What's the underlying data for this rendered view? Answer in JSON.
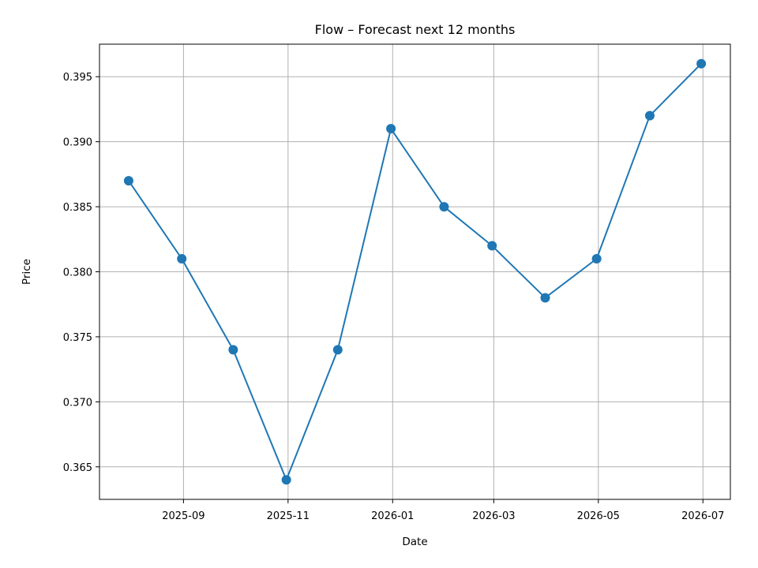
{
  "chart_data": {
    "type": "line",
    "title": "Flow – Forecast next 12 months",
    "xlabel": "Date",
    "ylabel": "Price",
    "grid": true,
    "legend": "none",
    "x_tick_labels": [
      "2025-09",
      "2025-11",
      "2026-01",
      "2026-03",
      "2026-05",
      "2026-07"
    ],
    "y_tick_labels": [
      "0.365",
      "0.370",
      "0.375",
      "0.380",
      "0.385",
      "0.390",
      "0.395"
    ],
    "y_ticks": [
      0.365,
      0.37,
      0.375,
      0.38,
      0.385,
      0.39,
      0.395
    ],
    "ylim": [
      0.3625,
      0.3975
    ],
    "xlim": [
      "2025-07-14",
      "2026-07-17"
    ],
    "x": [
      "2025-07-31",
      "2025-08-31",
      "2025-09-30",
      "2025-10-31",
      "2025-11-30",
      "2025-12-31",
      "2026-01-31",
      "2026-02-28",
      "2026-03-31",
      "2026-04-30",
      "2026-05-31",
      "2026-06-30"
    ],
    "series": [
      {
        "color": "#1f77b4",
        "marker": "circle",
        "values": [
          0.387,
          0.381,
          0.374,
          0.364,
          0.374,
          0.391,
          0.385,
          0.382,
          0.378,
          0.381,
          0.392,
          0.396
        ]
      }
    ]
  }
}
